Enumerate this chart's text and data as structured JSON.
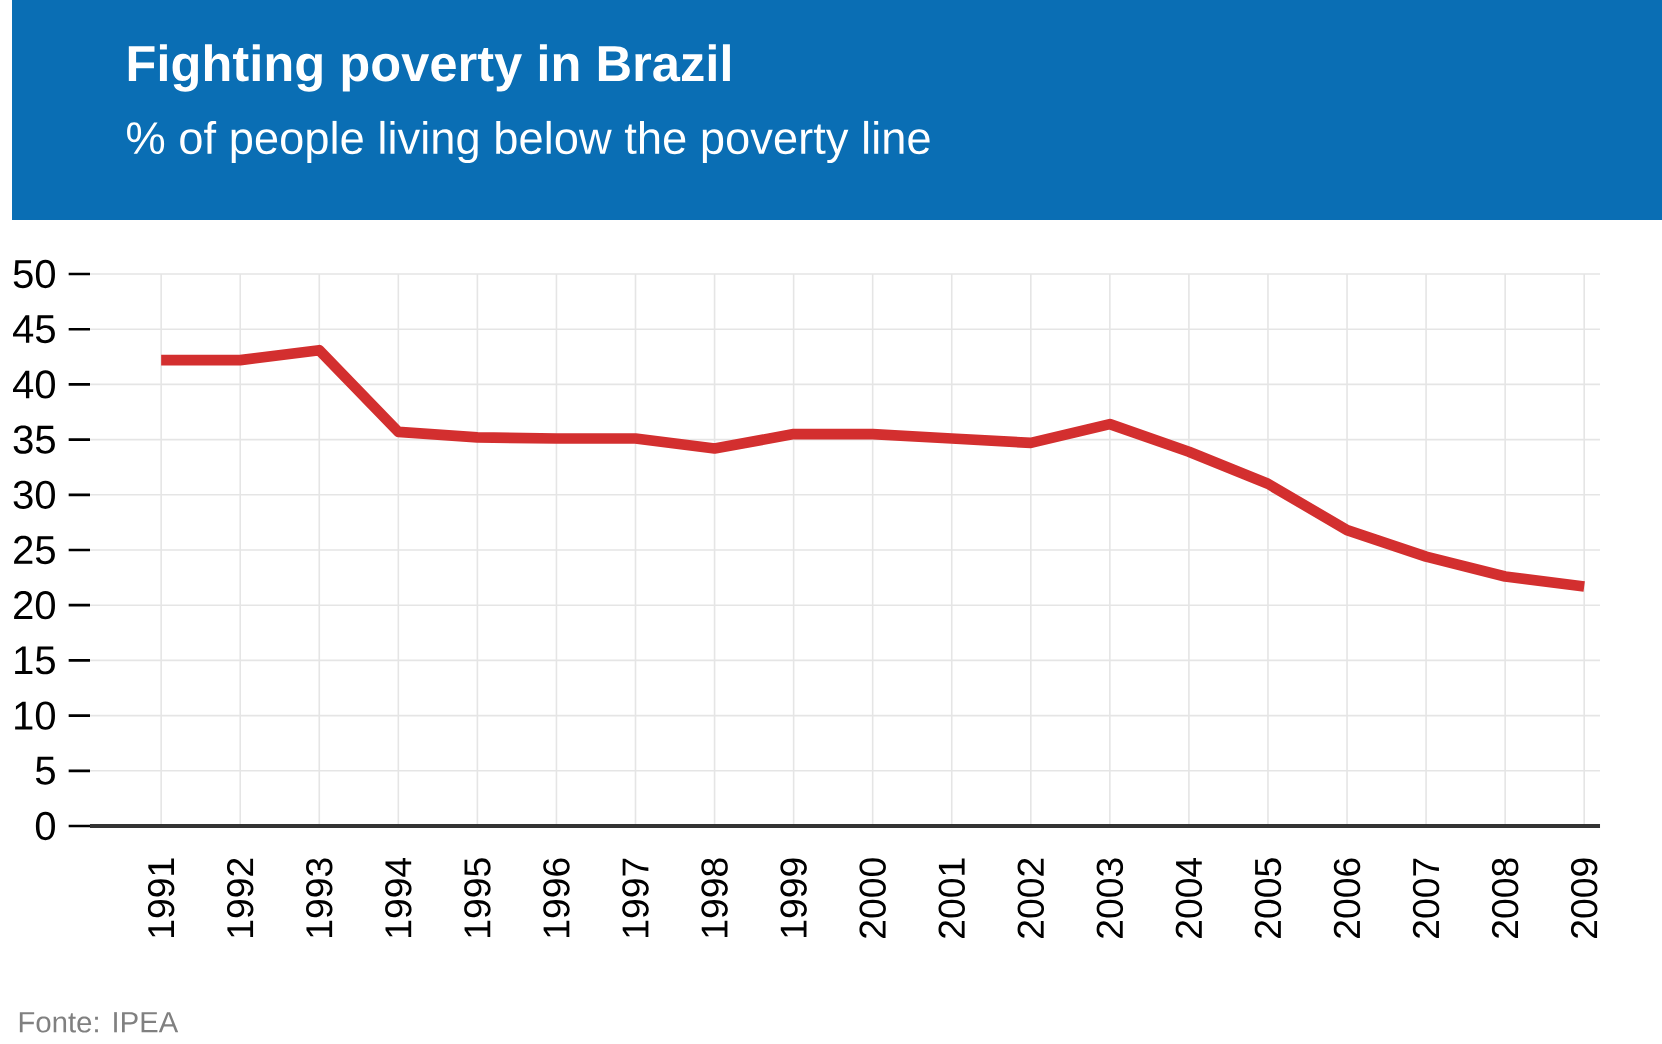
{
  "chart_data": {
    "type": "line",
    "title": "Fighting poverty in Brazil",
    "subtitle": "% of people living below the poverty line",
    "categories": [
      "1991",
      "1992",
      "1993",
      "1994",
      "1995",
      "1996",
      "1997",
      "1998",
      "1999",
      "2000",
      "2001",
      "2002",
      "2003",
      "2004",
      "2005",
      "2006",
      "2007",
      "2008",
      "2009"
    ],
    "series": [
      {
        "color": "#d32f2f",
        "values": [
          42.2,
          42.2,
          43.1,
          35.7,
          35.2,
          35.1,
          35.1,
          34.2,
          35.5,
          35.5,
          35.1,
          34.7,
          36.4,
          33.9,
          31.0,
          26.8,
          24.4,
          22.6,
          21.7
        ]
      }
    ],
    "ylim": [
      0,
      50
    ],
    "yticks": [
      0,
      5,
      10,
      15,
      20,
      25,
      30,
      35,
      40,
      45,
      50
    ],
    "grid": true,
    "annotations": [
      "Fonte: IPEA"
    ]
  }
}
